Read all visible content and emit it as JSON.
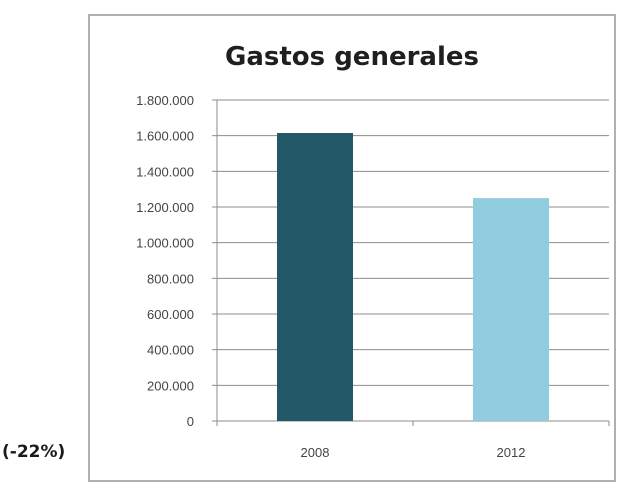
{
  "chart_data": {
    "type": "bar",
    "title": "Gastos generales",
    "xlabel": "",
    "ylabel": "",
    "categories": [
      "2008",
      "2012"
    ],
    "values": [
      1615000,
      1250000
    ],
    "colors": [
      "#225867",
      "#92cddf"
    ],
    "ylim": [
      0,
      1800000
    ],
    "yticks": [
      "0",
      "200.000",
      "400.000",
      "600.000",
      "800.000",
      "1.000.000",
      "1.200.000",
      "1.400.000",
      "1.600.000",
      "1.800.000"
    ],
    "grid": true,
    "legend": "none"
  },
  "annotation": "(-22%)"
}
